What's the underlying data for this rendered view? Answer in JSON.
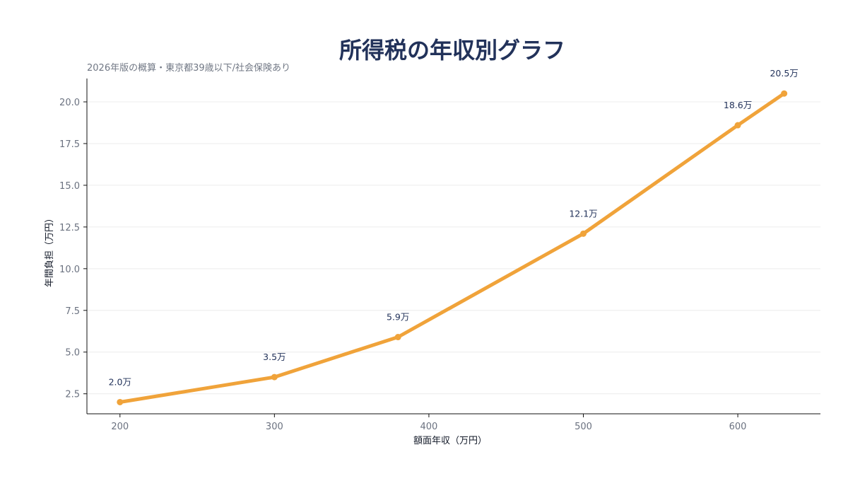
{
  "chart_data": {
    "type": "line",
    "title": "所得税の年収別グラフ",
    "subtitle": "2026年版の概算・東京都39歳以下/社会保険あり",
    "xlabel": "額面年収（万円）",
    "ylabel": "年間負担（万円）",
    "xlim": [
      178.6,
      653.5
    ],
    "ylim": [
      1.3,
      21.4
    ],
    "xticks": [
      200,
      300,
      400,
      500,
      600
    ],
    "yticks": [
      2.5,
      5.0,
      7.5,
      10.0,
      12.5,
      15.0,
      17.5,
      20.0
    ],
    "grid": "horizontal",
    "series": [
      {
        "values": [
          {
            "x": 200,
            "y": 2.0,
            "label": "2.0万"
          },
          {
            "x": 300,
            "y": 3.5,
            "label": "3.5万"
          },
          {
            "x": 380,
            "y": 5.9,
            "label": "5.9万"
          },
          {
            "x": 500,
            "y": 12.1,
            "label": "12.1万"
          },
          {
            "x": 600,
            "y": 18.6,
            "label": "18.6万"
          },
          {
            "x": 630,
            "y": 20.5,
            "label": "20.5万"
          }
        ]
      }
    ],
    "colors": {
      "line": "#f0a33a",
      "title": "#22325a",
      "grid": "#ececec",
      "axis": "#111111"
    }
  }
}
